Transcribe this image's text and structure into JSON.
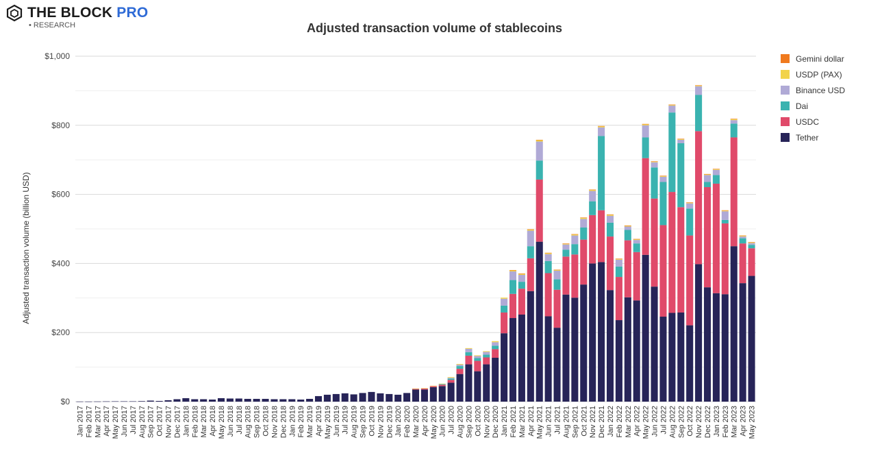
{
  "logo": {
    "name_main": "THE BLOCK",
    "name_accent": "PRO",
    "sub": "RESEARCH"
  },
  "chart_data": {
    "type": "bar",
    "stacked": true,
    "title": "Adjusted transaction volume of stablecoins",
    "ylabel": "Adjusted transaction volume (billion USD)",
    "xlabel": "",
    "ylim": [
      0,
      1000
    ],
    "yticks": [
      0,
      200,
      400,
      600,
      800,
      1000
    ],
    "ytick_labels": [
      "$0",
      "$200",
      "$400",
      "$600",
      "$800",
      "$1,000"
    ],
    "legend_position": "right",
    "categories": [
      "Jan 2017",
      "Feb 2017",
      "Mar 2017",
      "Apr 2017",
      "May 2017",
      "Jun 2017",
      "Jul 2017",
      "Aug 2017",
      "Sep 2017",
      "Oct 2017",
      "Nov 2017",
      "Dec 2017",
      "Jan 2018",
      "Feb 2018",
      "Mar 2018",
      "Apr 2018",
      "May 2018",
      "Jun 2018",
      "Jul 2018",
      "Aug 2018",
      "Sep 2018",
      "Oct 2018",
      "Nov 2018",
      "Dec 2018",
      "Jan 2019",
      "Feb 2019",
      "Mar 2019",
      "Apr 2019",
      "May 2019",
      "Jun 2019",
      "Jul 2019",
      "Aug 2019",
      "Sep 2019",
      "Oct 2019",
      "Nov 2019",
      "Dec 2019",
      "Jan 2020",
      "Feb 2020",
      "Mar 2020",
      "Apr 2020",
      "May 2020",
      "Jun 2020",
      "Jul 2020",
      "Aug 2020",
      "Sep 2020",
      "Oct 2020",
      "Nov 2020",
      "Dec 2020",
      "Jan 2021",
      "Feb 2021",
      "Mar 2021",
      "Apr 2021",
      "May 2021",
      "Jun 2021",
      "Jul 2021",
      "Aug 2021",
      "Sep 2021",
      "Oct 2021",
      "Nov 2021",
      "Dec 2021",
      "Jan 2022",
      "Feb 2022",
      "Mar 2022",
      "Apr 2022",
      "May 2022",
      "Jun 2022",
      "Jul 2022",
      "Aug 2022",
      "Sep 2022",
      "Oct 2022",
      "Nov 2022",
      "Dec 2022",
      "Jan 2023",
      "Feb 2023",
      "Mar 2023",
      "Apr 2023",
      "May 2023"
    ],
    "series": [
      {
        "name": "Tether",
        "color": "#272458",
        "values": [
          0.3,
          0.3,
          0.5,
          0.8,
          1,
          1,
          1,
          1.5,
          3,
          2,
          4,
          7,
          10,
          7,
          7,
          6,
          10,
          9,
          9,
          8,
          8,
          8,
          7,
          7,
          7,
          6,
          8,
          16,
          20,
          22,
          24,
          21,
          25,
          28,
          24,
          22,
          20,
          25,
          35,
          35,
          42,
          45,
          55,
          80,
          108,
          88,
          108,
          127,
          198,
          242,
          252,
          320,
          463,
          247,
          214,
          310,
          301,
          339,
          400,
          404,
          323,
          236,
          302,
          293,
          425,
          333,
          246,
          257,
          258,
          221,
          398,
          331,
          314,
          311,
          450,
          343,
          364
        ]
      },
      {
        "name": "USDC",
        "color": "#e04a6a",
        "values": [
          0,
          0,
          0,
          0,
          0,
          0,
          0,
          0,
          0,
          0,
          0,
          0,
          0,
          0,
          0,
          0,
          0,
          0,
          0,
          0,
          0,
          0,
          0,
          0,
          0,
          0,
          0,
          0,
          0,
          0,
          0,
          0,
          0,
          0,
          0,
          0,
          0,
          0,
          2,
          3,
          3,
          4,
          8,
          15,
          25,
          30,
          20,
          25,
          60,
          70,
          75,
          95,
          180,
          125,
          110,
          110,
          125,
          130,
          140,
          150,
          155,
          125,
          165,
          140,
          280,
          255,
          265,
          350,
          305,
          260,
          385,
          290,
          317,
          205,
          315,
          115,
          80
        ]
      },
      {
        "name": "Dai",
        "color": "#3ab3b0",
        "values": [
          0,
          0,
          0,
          0,
          0,
          0,
          0,
          0,
          0,
          0,
          0,
          0,
          0,
          0,
          0,
          0,
          0,
          0,
          0,
          0,
          0,
          0,
          0,
          0,
          0,
          0,
          0,
          0,
          0,
          0,
          0,
          0,
          0,
          0,
          0,
          0,
          0,
          0,
          0,
          0,
          0,
          2,
          4,
          8,
          10,
          8,
          8,
          10,
          20,
          40,
          20,
          35,
          55,
          35,
          30,
          20,
          30,
          35,
          40,
          215,
          40,
          30,
          30,
          25,
          60,
          90,
          125,
          230,
          185,
          78,
          105,
          15,
          25,
          10,
          40,
          15,
          10
        ]
      },
      {
        "name": "Binance USD",
        "color": "#b0aad6",
        "values": [
          0,
          0,
          0,
          0,
          0,
          0,
          0,
          0,
          0,
          0,
          0,
          0,
          0,
          0,
          0,
          0,
          0,
          0,
          0,
          0,
          0,
          0,
          0,
          0,
          0,
          0,
          0,
          0,
          0,
          0,
          0,
          0,
          0,
          0,
          0,
          0,
          0,
          0,
          0,
          0,
          0,
          0,
          2,
          4,
          10,
          6,
          8,
          10,
          20,
          25,
          20,
          45,
          55,
          20,
          25,
          15,
          25,
          25,
          30,
          25,
          20,
          20,
          10,
          10,
          35,
          15,
          15,
          20,
          10,
          15,
          25,
          20,
          15,
          25,
          10,
          5,
          5
        ]
      },
      {
        "name": "USDP (PAX)",
        "color": "#f2d34a",
        "values": [
          0,
          0,
          0,
          0,
          0,
          0,
          0,
          0,
          0,
          0,
          0,
          0,
          0,
          0,
          0,
          0,
          0,
          0,
          0,
          0,
          0,
          0,
          0,
          0,
          0,
          0,
          0,
          0,
          0,
          0,
          0,
          0,
          0,
          0,
          0,
          0,
          0,
          0,
          1,
          1,
          1,
          1,
          2,
          2,
          2,
          2,
          2,
          3,
          3,
          3,
          3,
          3,
          4,
          3,
          2,
          2,
          3,
          3,
          3,
          3,
          3,
          2,
          2,
          2,
          3,
          2,
          2,
          2,
          2,
          2,
          2,
          2,
          2,
          2,
          3,
          2,
          2
        ]
      },
      {
        "name": "Gemini dollar",
        "color": "#f07a1e",
        "values": [
          0,
          0,
          0,
          0,
          0,
          0,
          0,
          0,
          0,
          0,
          0,
          0,
          0,
          0,
          0,
          0,
          0,
          0,
          0,
          0,
          0,
          0,
          0,
          0,
          0,
          0,
          0,
          0,
          0,
          0,
          0,
          0,
          0,
          0,
          0,
          0,
          0,
          0,
          0,
          0,
          0,
          0,
          0,
          0,
          0,
          0,
          0,
          0,
          0,
          1,
          1,
          1,
          1,
          1,
          1,
          1,
          1,
          1,
          1,
          1,
          1,
          1,
          1,
          1,
          1,
          1,
          1,
          1,
          1,
          1,
          1,
          1,
          1,
          1,
          1,
          1,
          1
        ]
      }
    ]
  }
}
